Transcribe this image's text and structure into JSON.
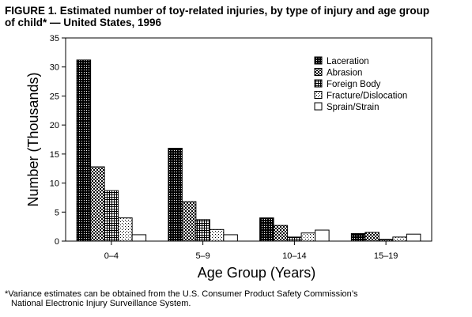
{
  "title_line1": "FIGURE 1. Estimated number of toy-related injuries, by type of injury and age group",
  "title_line2": "of child* — United States, 1996",
  "footnote_line1": "*Variance estimates can be obtained from the U.S. Consumer Product Safety Commission’s",
  "footnote_line2": "National Electronic Injury Surveillance System.",
  "chart_data": {
    "type": "bar",
    "title": "Estimated number of toy-related injuries, by type of injury and age group of child* — United States, 1996",
    "xlabel": "Age Group (Years)",
    "ylabel": "Number (Thousands)",
    "ylim": [
      0,
      35
    ],
    "yticks": [
      0,
      5,
      10,
      15,
      20,
      25,
      30,
      35
    ],
    "categories": [
      "0–4",
      "5–9",
      "10–14",
      "15–19"
    ],
    "legend_position": "top-right",
    "grid": false,
    "series": [
      {
        "name": "Laceration",
        "pattern": "dense-dots",
        "values": [
          31.2,
          16.0,
          4.0,
          1.3
        ]
      },
      {
        "name": "Abrasion",
        "pattern": "checker",
        "values": [
          12.8,
          6.8,
          2.7,
          1.5
        ]
      },
      {
        "name": "Foreign Body",
        "pattern": "grid-lines",
        "values": [
          8.7,
          3.7,
          0.7,
          0.3
        ]
      },
      {
        "name": "Fracture/Dislocation",
        "pattern": "sparse-dots",
        "values": [
          4.0,
          2.0,
          1.4,
          0.7
        ]
      },
      {
        "name": "Sprain/Strain",
        "pattern": "empty",
        "values": [
          1.1,
          1.1,
          1.9,
          1.2
        ]
      }
    ]
  }
}
